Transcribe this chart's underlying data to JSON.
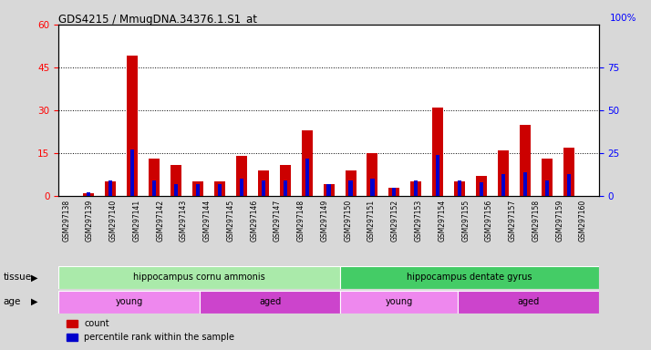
{
  "title": "GDS4215 / MmugDNA.34376.1.S1_at",
  "samples": [
    "GSM297138",
    "GSM297139",
    "GSM297140",
    "GSM297141",
    "GSM297142",
    "GSM297143",
    "GSM297144",
    "GSM297145",
    "GSM297146",
    "GSM297147",
    "GSM297148",
    "GSM297149",
    "GSM297150",
    "GSM297151",
    "GSM297152",
    "GSM297153",
    "GSM297154",
    "GSM297155",
    "GSM297156",
    "GSM297157",
    "GSM297158",
    "GSM297159",
    "GSM297160"
  ],
  "count_values": [
    1,
    5,
    49,
    13,
    11,
    5,
    5,
    14,
    9,
    11,
    23,
    4,
    9,
    15,
    3,
    5,
    31,
    5,
    7,
    16,
    25,
    13,
    17
  ],
  "percentile_values": [
    2,
    9,
    27,
    9,
    7,
    7,
    7,
    10,
    9,
    9,
    22,
    7,
    9,
    10,
    5,
    9,
    24,
    9,
    8,
    13,
    14,
    9,
    13
  ],
  "red_color": "#cc0000",
  "blue_color": "#0000cc",
  "ylim_left": [
    0,
    60
  ],
  "ylim_right": [
    0,
    100
  ],
  "yticks_left": [
    0,
    15,
    30,
    45,
    60
  ],
  "yticks_right": [
    0,
    25,
    50,
    75,
    100
  ],
  "tissue_groups": [
    {
      "label": "hippocampus cornu ammonis",
      "start": 0,
      "end": 12,
      "color": "#aaeaaa"
    },
    {
      "label": "hippocampus dentate gyrus",
      "start": 12,
      "end": 23,
      "color": "#44cc66"
    }
  ],
  "age_groups": [
    {
      "label": "young",
      "start": 0,
      "end": 6,
      "color": "#ee88ee"
    },
    {
      "label": "aged",
      "start": 6,
      "end": 12,
      "color": "#cc44cc"
    },
    {
      "label": "young",
      "start": 12,
      "end": 17,
      "color": "#ee88ee"
    },
    {
      "label": "aged",
      "start": 17,
      "end": 23,
      "color": "#cc44cc"
    }
  ],
  "legend_count_label": "count",
  "legend_percentile_label": "percentile rank within the sample",
  "bar_width": 0.5,
  "tissue_label": "tissue",
  "age_label": "age",
  "background_color": "#d8d8d8",
  "plot_bg_color": "#ffffff"
}
